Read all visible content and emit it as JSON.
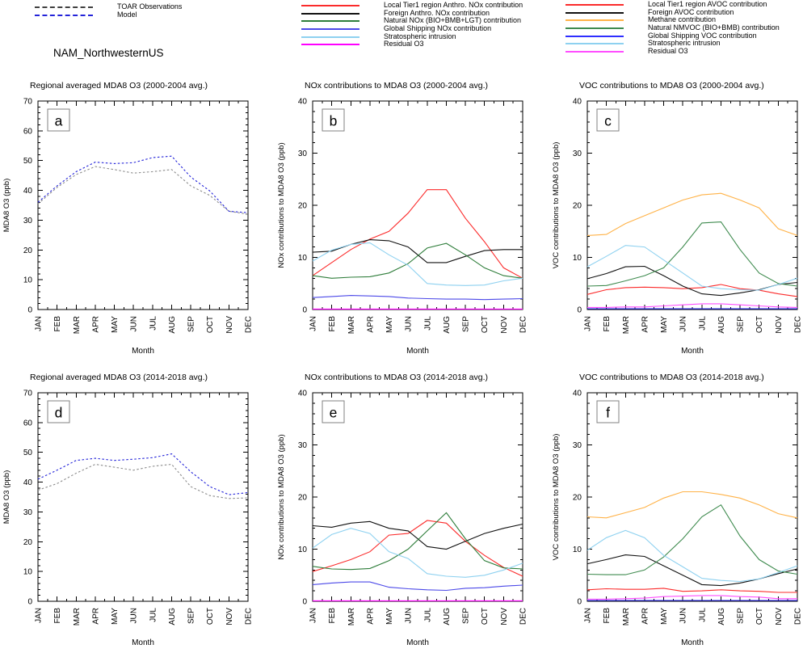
{
  "header": {
    "title": "NAM_NorthwesternUS",
    "obs_model_legend": [
      {
        "label": "TOAR Observations",
        "color": "#404040",
        "style": "dashed"
      },
      {
        "label": "Model",
        "color": "#2323d9",
        "style": "dashed"
      }
    ],
    "nox_legend": [
      {
        "label": "Local Tier1 region Anthro. NOx contribution",
        "color": "#fb2b2b",
        "style": "solid"
      },
      {
        "label": "Foreign Anthro. NOx contribution",
        "color": "#111111",
        "style": "solid"
      },
      {
        "label": "Natural NOx (BIO+BMB+LGT) contribution",
        "color": "#2e7d3a",
        "style": "solid"
      },
      {
        "label": "Global Shipping NOx contribution",
        "color": "#4c49e8",
        "style": "solid"
      },
      {
        "label": "Stratospheric intrusion",
        "color": "#8ed1f0",
        "style": "solid"
      },
      {
        "label": "Residual O3",
        "color": "#ff00ff",
        "style": "solid"
      }
    ],
    "voc_legend": [
      {
        "label": "Local Tier1 region AVOC contribution",
        "color": "#fb2b2b",
        "style": "solid"
      },
      {
        "label": "Foreign AVOC contribution",
        "color": "#111111",
        "style": "solid"
      },
      {
        "label": "Methane contribution",
        "color": "#ffb247",
        "style": "solid"
      },
      {
        "label": "Natural NMVOC (BIO+BMB) contribution",
        "color": "#3f8b4f",
        "style": "solid"
      },
      {
        "label": "Global Shipping VOC contribution",
        "color": "#2e2eff",
        "style": "solid"
      },
      {
        "label": "Stratospheric intrusion",
        "color": "#8ed1f0",
        "style": "solid"
      },
      {
        "label": "Residual O3",
        "color": "#ff4dff",
        "style": "solid"
      }
    ]
  },
  "chart_data": [
    {
      "id": "a",
      "type": "line",
      "dashed": true,
      "title": "Regional averaged MDA8 O3 (2000-2004 avg.)",
      "xlabel": "Month",
      "ylabel": "MDA8 O3 (ppb)",
      "ylim": [
        0,
        70
      ],
      "ytick_step": 10,
      "yminor_step": 2,
      "grid": false,
      "categories": [
        "JAN",
        "FEB",
        "MAR",
        "APR",
        "MAY",
        "JUN",
        "JUL",
        "AUG",
        "SEP",
        "OCT",
        "NOV",
        "DEC"
      ],
      "series": [
        {
          "name": "TOAR Observations",
          "color": "#8c8c8c",
          "values": [
            35.5,
            41,
            45.3,
            48,
            47,
            45.8,
            46.3,
            47,
            41.5,
            38.3,
            33,
            32
          ]
        },
        {
          "name": "Model",
          "color": "#2323d9",
          "values": [
            36,
            41.5,
            46.3,
            49.5,
            49,
            49.3,
            51,
            51.5,
            44.5,
            39.8,
            33,
            32.5
          ]
        }
      ]
    },
    {
      "id": "b",
      "type": "line",
      "dashed": false,
      "title": "NOx contributions to MDA8 O3 (2000-2004 avg.)",
      "xlabel": "Month",
      "ylabel": "NOx contributions to MDA8 O3 (ppb)",
      "ylim": [
        0,
        40
      ],
      "ytick_step": 10,
      "yminor_step": 2,
      "grid": false,
      "categories": [
        "JAN",
        "FEB",
        "MAR",
        "APR",
        "MAY",
        "JUN",
        "JUL",
        "AUG",
        "SEP",
        "OCT",
        "NOV",
        "DEC"
      ],
      "series": [
        {
          "name": "Local Tier1 region Anthro. NOx contribution",
          "color": "#fb2b2b",
          "values": [
            6.5,
            9,
            11.5,
            13.5,
            15,
            18.5,
            23,
            23,
            17.5,
            13,
            8,
            6
          ]
        },
        {
          "name": "Foreign Anthro. NOx contribution",
          "color": "#111111",
          "values": [
            11,
            11.2,
            12.5,
            13.4,
            13.2,
            12,
            9,
            9,
            10.2,
            11.3,
            11.5,
            11.5
          ]
        },
        {
          "name": "Natural NOx (BIO+BMB+LGT) contribution",
          "color": "#2e7d3a",
          "values": [
            6.5,
            6,
            6.2,
            6.3,
            7,
            8.8,
            11.8,
            12.7,
            10.5,
            8,
            6.5,
            6
          ]
        },
        {
          "name": "Global Shipping NOx contribution",
          "color": "#4c49e8",
          "values": [
            2.3,
            2.5,
            2.7,
            2.6,
            2.5,
            2.2,
            2.1,
            2,
            2,
            1.9,
            2,
            2.1
          ]
        },
        {
          "name": "Stratospheric intrusion",
          "color": "#8ed1f0",
          "values": [
            9.3,
            11.4,
            12.5,
            12.8,
            10.5,
            8.5,
            5,
            4.7,
            4.6,
            4.7,
            5.5,
            6
          ]
        },
        {
          "name": "Residual O3",
          "color": "#ff00ff",
          "values": [
            0.1,
            0.1,
            0.1,
            0.1,
            0.1,
            0.1,
            0.1,
            0.1,
            0.1,
            0.1,
            0.1,
            0.1
          ]
        }
      ]
    },
    {
      "id": "c",
      "type": "line",
      "dashed": false,
      "title": "VOC contributions to MDA8 O3 (2000-2004 avg.)",
      "xlabel": "Month",
      "ylabel": "VOC contributions to MDA8 O3 (ppb)",
      "ylim": [
        0,
        40
      ],
      "ytick_step": 10,
      "yminor_step": 2,
      "grid": false,
      "categories": [
        "JAN",
        "FEB",
        "MAR",
        "APR",
        "MAY",
        "JUN",
        "JUL",
        "AUG",
        "SEP",
        "OCT",
        "NOV",
        "DEC"
      ],
      "series": [
        {
          "name": "Local Tier1 region AVOC contribution",
          "color": "#fb2b2b",
          "values": [
            2.9,
            3.8,
            4.2,
            4.3,
            4.2,
            4,
            4.2,
            4.8,
            4,
            3.7,
            3,
            2.5
          ]
        },
        {
          "name": "Foreign AVOC contribution",
          "color": "#111111",
          "values": [
            5.9,
            6.9,
            8.2,
            8.3,
            6.5,
            4.5,
            3,
            2.7,
            3.2,
            3.8,
            4.8,
            5.2
          ]
        },
        {
          "name": "Methane contribution",
          "color": "#ffb247",
          "values": [
            14.2,
            14.4,
            16.5,
            18,
            19.5,
            21,
            22,
            22.3,
            21,
            19.5,
            15.5,
            14.2
          ]
        },
        {
          "name": "Natural NMVOC (BIO+BMB) contribution",
          "color": "#3f8b4f",
          "values": [
            4.5,
            4.6,
            5.5,
            6.5,
            8,
            12,
            16.6,
            16.8,
            11.5,
            7,
            5,
            4.5
          ]
        },
        {
          "name": "Global Shipping VOC contribution",
          "color": "#2e2eff",
          "values": [
            0.15,
            0.15,
            0.15,
            0.15,
            0.15,
            0.15,
            0.15,
            0.15,
            0.15,
            0.15,
            0.15,
            0.15
          ]
        },
        {
          "name": "Stratospheric intrusion",
          "color": "#8ed1f0",
          "values": [
            8.2,
            10.2,
            12.3,
            12,
            9.5,
            7,
            4.5,
            4,
            3.8,
            3.7,
            4.8,
            6
          ]
        },
        {
          "name": "Residual O3",
          "color": "#ff4dff",
          "values": [
            0.4,
            0.4,
            0.5,
            0.5,
            0.7,
            0.9,
            1.1,
            1.1,
            0.9,
            0.7,
            0.5,
            0.4
          ]
        }
      ]
    },
    {
      "id": "d",
      "type": "line",
      "dashed": true,
      "title": "Regional averaged MDA8 O3 (2014-2018 avg.)",
      "xlabel": "Month",
      "ylabel": "MDA8 O3 (ppb)",
      "ylim": [
        0,
        70
      ],
      "ytick_step": 10,
      "yminor_step": 2,
      "grid": false,
      "categories": [
        "JAN",
        "FEB",
        "MAR",
        "APR",
        "MAY",
        "JUN",
        "JUL",
        "AUG",
        "SEP",
        "OCT",
        "NOV",
        "DEC"
      ],
      "series": [
        {
          "name": "TOAR Observations",
          "color": "#8c8c8c",
          "values": [
            37.3,
            39.5,
            43,
            46,
            45,
            44,
            45.3,
            46,
            38.5,
            35.5,
            34.5,
            34.7
          ]
        },
        {
          "name": "Model",
          "color": "#2323d9",
          "values": [
            41,
            44,
            47.3,
            48,
            47.3,
            47.7,
            48.2,
            49.5,
            43.5,
            38.5,
            35.8,
            36.5
          ]
        }
      ]
    },
    {
      "id": "e",
      "type": "line",
      "dashed": false,
      "title": "NOx contributions to MDA8 O3 (2014-2018 avg.)",
      "xlabel": "Month",
      "ylabel": "NOx contributions to MDA8 O3 (ppb)",
      "ylim": [
        0,
        40
      ],
      "ytick_step": 10,
      "yminor_step": 2,
      "grid": false,
      "categories": [
        "JAN",
        "FEB",
        "MAR",
        "APR",
        "MAY",
        "JUN",
        "JUL",
        "AUG",
        "SEP",
        "OCT",
        "NOV",
        "DEC"
      ],
      "series": [
        {
          "name": "Local Tier1 region Anthro. NOx contribution",
          "color": "#fb2b2b",
          "values": [
            5.7,
            6.8,
            8,
            9.5,
            12.7,
            13,
            15.5,
            15,
            11.5,
            8.8,
            6.5,
            4.8
          ]
        },
        {
          "name": "Foreign Anthro. NOx contribution",
          "color": "#111111",
          "values": [
            14.5,
            14.2,
            15,
            15.3,
            14,
            13.5,
            10.5,
            10,
            11.5,
            13,
            14,
            14.8
          ]
        },
        {
          "name": "Natural NOx (BIO+BMB+LGT) contribution",
          "color": "#2e7d3a",
          "values": [
            6.7,
            6.2,
            6.1,
            6.3,
            7.8,
            10,
            13.5,
            17,
            12,
            7.8,
            6.4,
            6.2
          ]
        },
        {
          "name": "Global Shipping NOx contribution",
          "color": "#4c49e8",
          "values": [
            3.2,
            3.5,
            3.7,
            3.7,
            2.7,
            2.4,
            2.2,
            2.1,
            2.5,
            2.6,
            2.9,
            3.1
          ]
        },
        {
          "name": "Stratospheric intrusion",
          "color": "#8ed1f0",
          "values": [
            10.2,
            12.8,
            14,
            13,
            9.5,
            8.2,
            5.3,
            4.8,
            4.6,
            5,
            6,
            7.3
          ]
        },
        {
          "name": "Residual O3",
          "color": "#ff00ff",
          "values": [
            0.1,
            0.1,
            0.1,
            0.1,
            0.1,
            0.1,
            0.1,
            0.1,
            0.1,
            0.1,
            0.1,
            0.1
          ]
        }
      ]
    },
    {
      "id": "f",
      "type": "line",
      "dashed": false,
      "title": "VOC contributions to MDA8 O3 (2014-2018 avg.)",
      "xlabel": "Month",
      "ylabel": "VOC contributions to MDA8 O3 (ppb)",
      "ylim": [
        0,
        40
      ],
      "ytick_step": 10,
      "yminor_step": 2,
      "grid": false,
      "categories": [
        "JAN",
        "FEB",
        "MAR",
        "APR",
        "MAY",
        "JUN",
        "JUL",
        "AUG",
        "SEP",
        "OCT",
        "NOV",
        "DEC"
      ],
      "series": [
        {
          "name": "Local Tier1 region AVOC contribution",
          "color": "#fb2b2b",
          "values": [
            2.2,
            2.4,
            2.3,
            2.3,
            2.5,
            1.9,
            2,
            2.2,
            2,
            1.9,
            1.7,
            1.7
          ]
        },
        {
          "name": "Foreign AVOC contribution",
          "color": "#111111",
          "values": [
            7.2,
            8,
            8.9,
            8.6,
            6.8,
            5,
            3.2,
            3,
            3.5,
            4.3,
            5.3,
            6.2
          ]
        },
        {
          "name": "Methane contribution",
          "color": "#ffb247",
          "values": [
            16.2,
            16,
            17,
            18,
            19.8,
            21,
            21,
            20.5,
            19.8,
            18.5,
            16.8,
            16
          ]
        },
        {
          "name": "Natural NMVOC (BIO+BMB) contribution",
          "color": "#3f8b4f",
          "values": [
            5.2,
            5.1,
            5.1,
            6,
            8.5,
            12,
            16.2,
            18.5,
            12.5,
            8,
            5.8,
            5.2
          ]
        },
        {
          "name": "Global Shipping VOC contribution",
          "color": "#2e2eff",
          "values": [
            0.15,
            0.15,
            0.15,
            0.15,
            0.15,
            0.15,
            0.15,
            0.15,
            0.15,
            0.15,
            0.15,
            0.15
          ]
        },
        {
          "name": "Stratospheric intrusion",
          "color": "#8ed1f0",
          "values": [
            9.8,
            12.2,
            13.6,
            12.2,
            8.8,
            6.6,
            4.4,
            4,
            3.8,
            4.3,
            5.5,
            6.8
          ]
        },
        {
          "name": "Residual O3",
          "color": "#ff4dff",
          "values": [
            0.4,
            0.4,
            0.5,
            0.6,
            0.9,
            1,
            1.1,
            1.1,
            0.9,
            0.8,
            0.5,
            0.5
          ]
        }
      ]
    }
  ]
}
